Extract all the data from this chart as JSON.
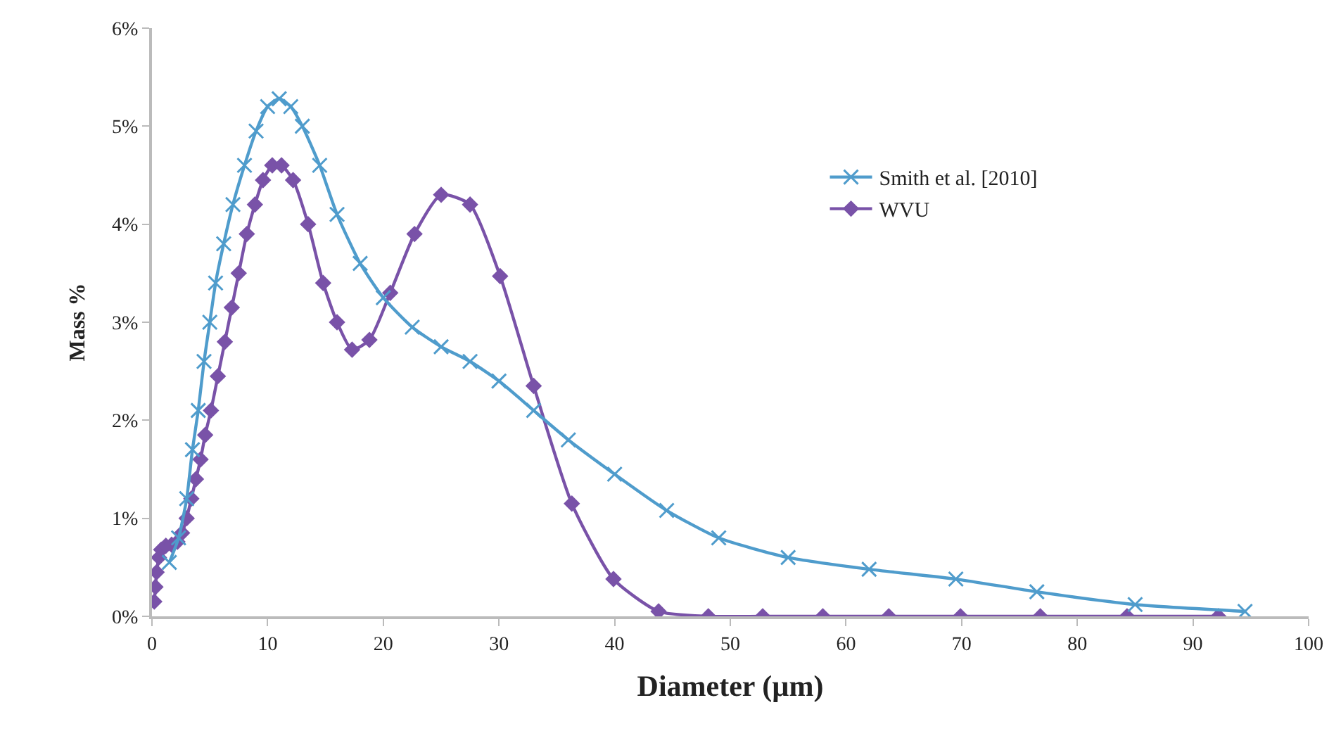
{
  "chart_data": {
    "type": "line",
    "xlabel": "Diameter (µm)",
    "ylabel": "Mass %",
    "xlim": [
      0,
      100
    ],
    "xticks": [
      0,
      10,
      20,
      30,
      40,
      50,
      60,
      70,
      80,
      90,
      100
    ],
    "ylim": [
      0,
      6
    ],
    "yticks": [
      {
        "value": 0,
        "label": "0%"
      },
      {
        "value": 1,
        "label": "1%"
      },
      {
        "value": 2,
        "label": "2%"
      },
      {
        "value": 3,
        "label": "3%"
      },
      {
        "value": 4,
        "label": "4%"
      },
      {
        "value": 5,
        "label": "5%"
      },
      {
        "value": 6,
        "label": "6%"
      }
    ],
    "legend": "right",
    "series": [
      {
        "name": "Smith et al. [2010]",
        "color": "#4f9ccc",
        "marker": "cross",
        "x": [
          1.5,
          2.3,
          3.0,
          3.5,
          4.0,
          4.5,
          5.0,
          5.5,
          6.2,
          7.0,
          8.0,
          9.0,
          10.0,
          11.0,
          12.0,
          13.0,
          14.5,
          16.0,
          18.0,
          20.0,
          22.5,
          25.0,
          27.5,
          30.0,
          33.0,
          36.0,
          40.0,
          44.5,
          49.0,
          55.0,
          62.0,
          69.5,
          76.5,
          85.0,
          94.5
        ],
        "values": [
          0.55,
          0.8,
          1.2,
          1.7,
          2.1,
          2.6,
          3.0,
          3.4,
          3.8,
          4.2,
          4.6,
          4.95,
          5.2,
          5.28,
          5.2,
          5.0,
          4.6,
          4.1,
          3.6,
          3.25,
          2.95,
          2.75,
          2.6,
          2.4,
          2.1,
          1.8,
          1.45,
          1.08,
          0.8,
          0.6,
          0.48,
          0.38,
          0.25,
          0.12,
          0.05
        ]
      },
      {
        "name": "WVU",
        "color": "#7952a8",
        "marker": "diamond",
        "x": [
          0.2,
          0.3,
          0.4,
          0.6,
          0.8,
          1.2,
          1.7,
          2.2,
          2.6,
          3.0,
          3.4,
          3.8,
          4.2,
          4.6,
          5.1,
          5.7,
          6.3,
          6.9,
          7.5,
          8.2,
          8.9,
          9.6,
          10.4,
          11.2,
          12.2,
          13.5,
          14.8,
          16.0,
          17.3,
          18.8,
          20.6,
          22.7,
          25.0,
          27.5,
          30.1,
          33.0,
          36.3,
          39.9,
          43.8,
          48.1,
          52.8,
          58.0,
          63.7,
          69.9,
          76.8,
          84.3,
          92.2
        ],
        "values": [
          0.15,
          0.3,
          0.45,
          0.6,
          0.68,
          0.72,
          0.73,
          0.76,
          0.85,
          1.0,
          1.2,
          1.4,
          1.6,
          1.85,
          2.1,
          2.45,
          2.8,
          3.15,
          3.5,
          3.9,
          4.2,
          4.45,
          4.6,
          4.6,
          4.45,
          4.0,
          3.4,
          3.0,
          2.72,
          2.82,
          3.3,
          3.9,
          4.3,
          4.2,
          3.47,
          2.35,
          1.15,
          0.38,
          0.05,
          0,
          0,
          0,
          0,
          0,
          0,
          0,
          0
        ]
      }
    ]
  }
}
